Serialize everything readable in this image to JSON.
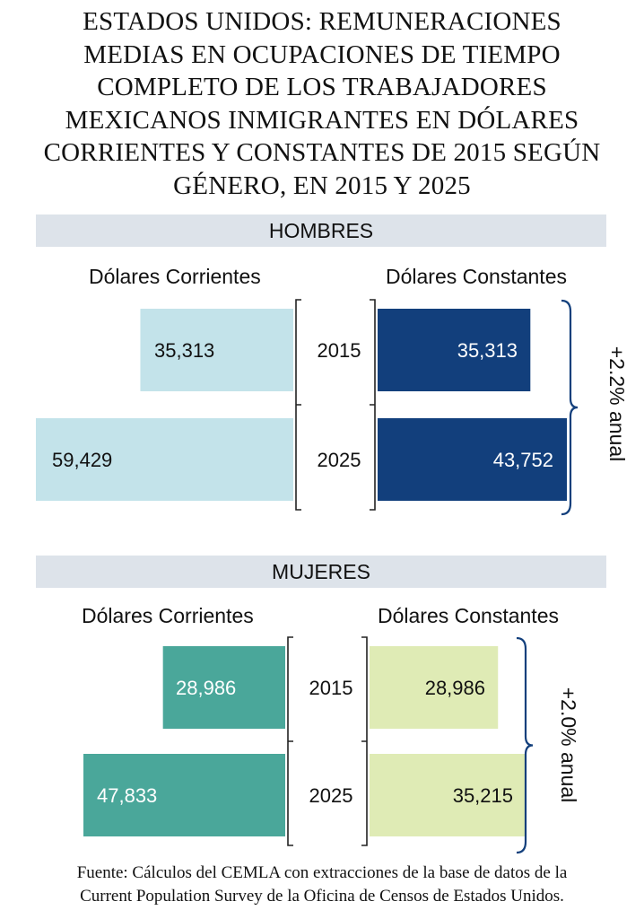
{
  "title_lines": [
    "ESTADOS UNIDOS: REMUNERACIONES",
    "MEDIAS EN OCUPACIONES DE TIEMPO",
    "COMPLETO DE LOS TRABAJADORES",
    "MEXICANOS INMIGRANTES EN DÓLARES",
    "CORRIENTES Y CONSTANTES DE 2015 SEGÚN",
    "GÉNERO, EN 2015 Y 2025"
  ],
  "footer_lines": [
    "Fuente: Cálculos del CEMLA con extracciones de la base de datos de la",
    "Current Population Survey de la Oficina de Censos de Estados Unidos."
  ],
  "chart_data": [
    {
      "type": "bar",
      "panel": "HOMBRES",
      "left_label": "Dólares Corrientes",
      "right_label": "Dólares Constantes",
      "categories": [
        "2015",
        "2025"
      ],
      "series": [
        {
          "name": "Dólares Corrientes",
          "values": [
            35313,
            59429
          ],
          "labels": [
            "35,313",
            "59,429"
          ],
          "color": "#c3e3ea"
        },
        {
          "name": "Dólares Constantes",
          "values": [
            35313,
            43752
          ],
          "labels": [
            "35,313",
            "43,752"
          ],
          "color": "#123f7c"
        }
      ],
      "growth_annotation": "+2.2% anual"
    },
    {
      "type": "bar",
      "panel": "MUJERES",
      "left_label": "Dólares Corrientes",
      "right_label": "Dólares Constantes",
      "categories": [
        "2015",
        "2025"
      ],
      "series": [
        {
          "name": "Dólares Corrientes",
          "values": [
            28986,
            47833
          ],
          "labels": [
            "28,986",
            "47,833"
          ],
          "color": "#4aa79a"
        },
        {
          "name": "Dólares Constantes",
          "values": [
            28986,
            35215
          ],
          "labels": [
            "28,986",
            "35,215"
          ],
          "color": "#dfebb5"
        }
      ],
      "growth_annotation": "+2.0% anual"
    }
  ]
}
